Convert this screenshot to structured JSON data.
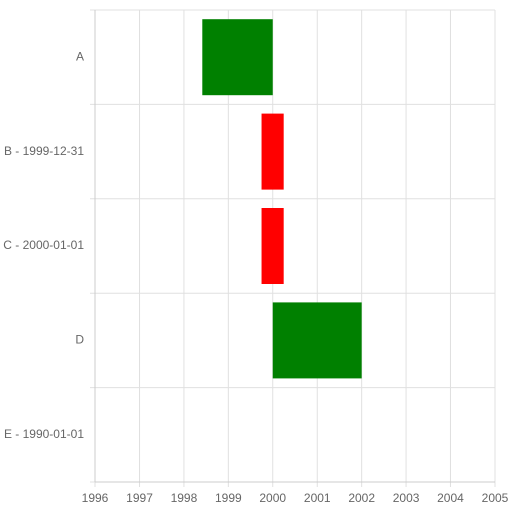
{
  "chart_data": {
    "type": "bar",
    "orientation": "horizontal",
    "subtype": "timeline-range",
    "grid": true,
    "x_axis": {
      "type": "date",
      "range": [
        "1996-01-01",
        "2005-01-01"
      ],
      "tick_labels": [
        "1996",
        "1997",
        "1998",
        "1999",
        "2000",
        "2001",
        "2002",
        "2003",
        "2004",
        "2005"
      ]
    },
    "categories": [
      "A",
      "B - 1999-12-31",
      "C - 2000-01-01",
      "D",
      "E - 1990-01-01"
    ],
    "bars": [
      {
        "category": "A",
        "start": "1998-06-01",
        "end": "2000-01-01",
        "color": "#008000"
      },
      {
        "category": "B - 1999-12-31",
        "start": "1999-10-01",
        "end": "2000-03-31",
        "color": "#ff0000"
      },
      {
        "category": "C - 2000-01-01",
        "start": "1999-10-01",
        "end": "2000-03-31",
        "color": "#ff0000"
      },
      {
        "category": "D",
        "start": "2000-01-01",
        "end": "2002-01-01",
        "color": "#008000"
      }
    ],
    "colors": {
      "green": "#008000",
      "red": "#ff0000",
      "grid": "#e0e0e0",
      "axis": "#cccccc",
      "text": "#666666"
    }
  }
}
